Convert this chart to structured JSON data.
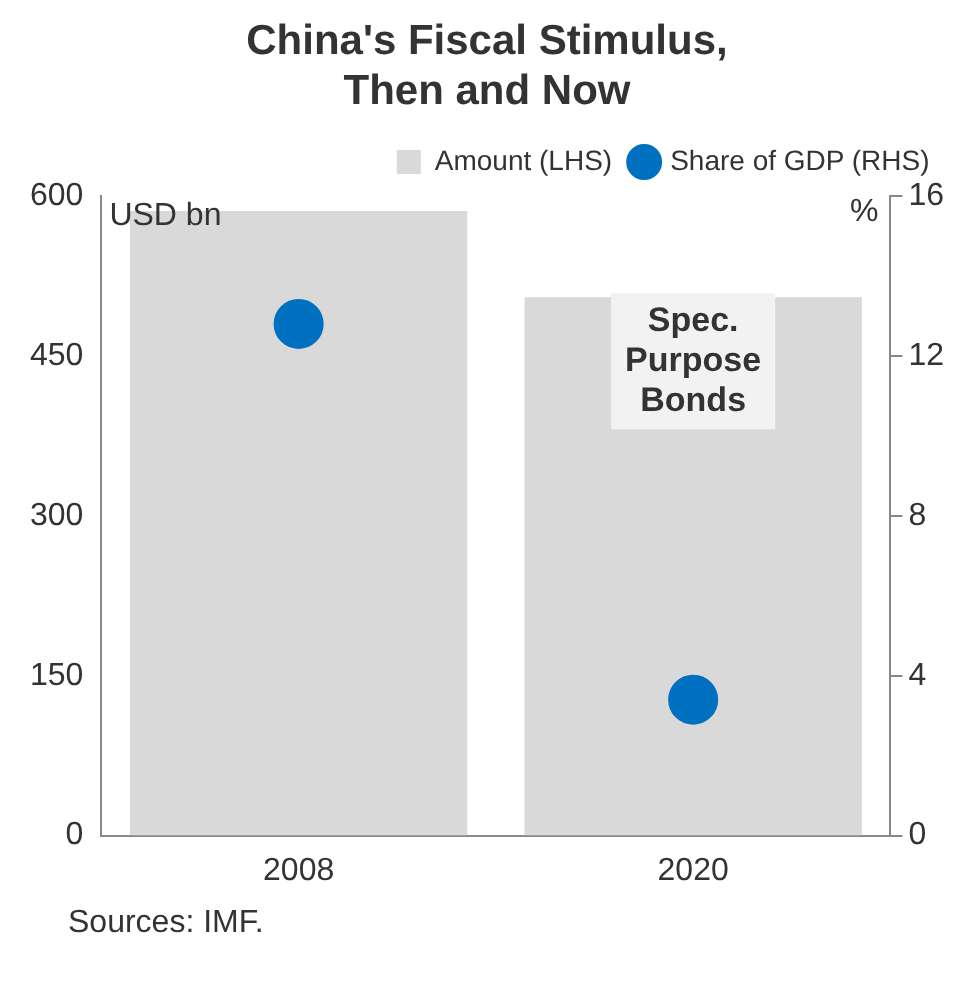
{
  "chart_data": {
    "type": "bar",
    "title": "China's Fiscal Stimulus, Then and Now",
    "ylabel": "USD bn",
    "y2label": "%",
    "categories": [
      "2008",
      "2020"
    ],
    "series": [
      {
        "name": "Amount (LHS)",
        "color": "#d9d9d9",
        "values": [
          586,
          505
        ]
      },
      {
        "name": "Share of GDP (RHS)",
        "type": "scatter",
        "axis": "y2",
        "color": "#0070c0",
        "values": [
          12.8,
          3.4
        ]
      }
    ],
    "ylim": [
      0,
      600
    ],
    "yticks": [
      0,
      150,
      300,
      450,
      600
    ],
    "y2lim": [
      0,
      16
    ],
    "y2ticks": [
      0,
      4,
      8,
      12,
      16
    ],
    "grid": false,
    "legend": "top right",
    "marker": "circle",
    "annotations": [
      "Spec. Purpose Bonds",
      "Sources: IMF."
    ]
  }
}
